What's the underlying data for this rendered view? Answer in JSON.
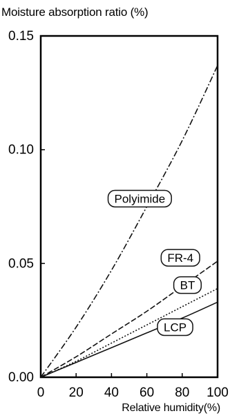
{
  "chart_data": {
    "type": "line",
    "ylabel": "Moisture absorption ratio (%)",
    "xlabel": "Relative humidity(%)",
    "xlim": [
      0,
      100
    ],
    "ylim": [
      0,
      0.15
    ],
    "xticks": [
      "0",
      "20",
      "40",
      "60",
      "80",
      "100"
    ],
    "yticks": [
      "0.00",
      "0.05",
      "0.10",
      "0.15"
    ],
    "grid": false,
    "series": [
      {
        "name": "Polyimide",
        "style": "dash-dot",
        "x": [
          0,
          20,
          40,
          60,
          80,
          100
        ],
        "y": [
          0,
          0.022,
          0.047,
          0.075,
          0.104,
          0.137
        ]
      },
      {
        "name": "FR-4",
        "style": "dashed",
        "x": [
          0,
          20,
          40,
          60,
          80,
          100
        ],
        "y": [
          0,
          0.009,
          0.019,
          0.029,
          0.04,
          0.051
        ]
      },
      {
        "name": "BT",
        "style": "dotted",
        "x": [
          0,
          20,
          40,
          60,
          80,
          100
        ],
        "y": [
          0,
          0.007,
          0.015,
          0.023,
          0.031,
          0.039
        ]
      },
      {
        "name": "LCP",
        "style": "solid",
        "x": [
          0,
          20,
          40,
          60,
          80,
          100
        ],
        "y": [
          0,
          0.0065,
          0.013,
          0.0195,
          0.026,
          0.033
        ]
      }
    ]
  }
}
